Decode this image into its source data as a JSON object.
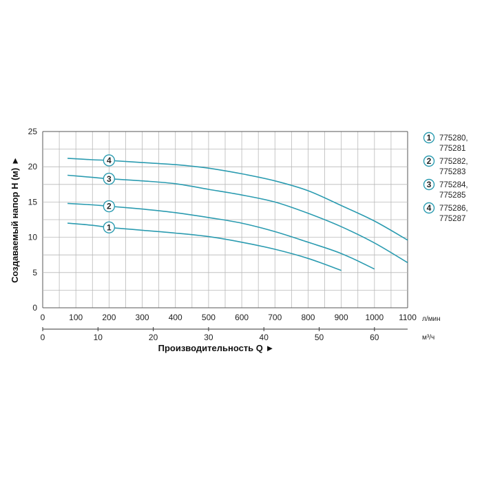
{
  "chart_data": {
    "type": "line",
    "ylabel": "Создаваемый напор H (м) ►",
    "xlabel": "Производительность Q ►",
    "ylim": [
      0,
      25
    ],
    "y_ticks": [
      "0",
      "5",
      "10",
      "15",
      "20",
      "25"
    ],
    "x_primary": {
      "unit": "л/мин",
      "range": [
        0,
        1100
      ],
      "ticks": [
        "0",
        "100",
        "200",
        "300",
        "400",
        "500",
        "600",
        "700",
        "800",
        "900",
        "1000",
        "1100"
      ]
    },
    "x_secondary": {
      "unit": "м³/ч",
      "range": [
        0,
        66
      ],
      "ticks": [
        "0",
        "10",
        "20",
        "30",
        "40",
        "50",
        "60"
      ]
    },
    "grid": true,
    "legend_position": "right",
    "line_color": "#2a9bb0",
    "series": [
      {
        "marker": "1",
        "name": "775280, 775281",
        "x": [
          75,
          150,
          200,
          300,
          400,
          500,
          600,
          700,
          800,
          900
        ],
        "y": [
          12.0,
          11.7,
          11.4,
          11.0,
          10.6,
          10.1,
          9.3,
          8.3,
          7.0,
          5.3
        ],
        "marker_x": 200
      },
      {
        "marker": "2",
        "name": "775282, 775283",
        "x": [
          75,
          150,
          200,
          300,
          400,
          500,
          600,
          700,
          800,
          900,
          1000
        ],
        "y": [
          14.8,
          14.6,
          14.4,
          14.0,
          13.5,
          12.8,
          12.0,
          10.8,
          9.3,
          7.7,
          5.5
        ],
        "marker_x": 200
      },
      {
        "marker": "3",
        "name": "775284, 775285",
        "x": [
          75,
          150,
          200,
          300,
          400,
          500,
          600,
          700,
          800,
          900,
          1000,
          1100
        ],
        "y": [
          18.8,
          18.5,
          18.3,
          18.0,
          17.6,
          16.8,
          16.0,
          15.0,
          13.4,
          11.5,
          9.2,
          6.4
        ],
        "marker_x": 200
      },
      {
        "marker": "4",
        "name": "775286, 775287",
        "x": [
          75,
          150,
          200,
          300,
          400,
          500,
          600,
          700,
          800,
          900,
          1000,
          1100
        ],
        "y": [
          21.2,
          21.0,
          20.9,
          20.6,
          20.3,
          19.8,
          19.0,
          18.0,
          16.6,
          14.5,
          12.3,
          9.6
        ],
        "marker_x": 200
      }
    ]
  }
}
